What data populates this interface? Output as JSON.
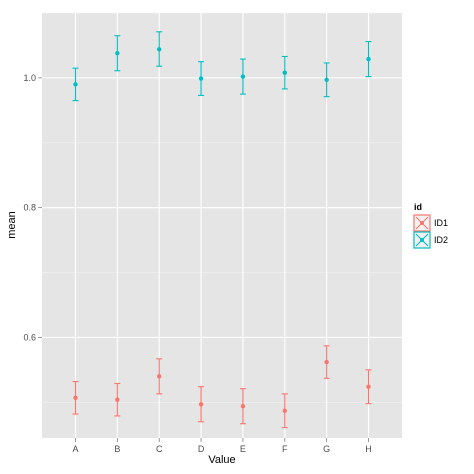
{
  "chart_data": {
    "type": "scatter",
    "title": "",
    "xlabel": "Value",
    "ylabel": "mean",
    "categories": [
      "A",
      "B",
      "C",
      "D",
      "E",
      "F",
      "G",
      "H"
    ],
    "ylim": [
      0.445,
      1.1
    ],
    "yticks": [
      0.6,
      0.8,
      1.0
    ],
    "ytick_labels": [
      "0.6",
      "0.8",
      "1.0"
    ],
    "grid": true,
    "error_bars": true,
    "legend": {
      "title": "id",
      "placement": "right"
    },
    "series": [
      {
        "name": "ID1",
        "color": "#f8766d",
        "values": [
          0.507,
          0.504,
          0.54,
          0.497,
          0.494,
          0.487,
          0.562,
          0.524
        ],
        "lower": [
          0.482,
          0.479,
          0.513,
          0.47,
          0.467,
          0.461,
          0.537,
          0.498
        ],
        "upper": [
          0.532,
          0.529,
          0.567,
          0.524,
          0.521,
          0.513,
          0.587,
          0.55
        ]
      },
      {
        "name": "ID2",
        "color": "#00bfc4",
        "values": [
          0.99,
          1.038,
          1.044,
          0.999,
          1.002,
          1.008,
          0.997,
          1.029
        ],
        "lower": [
          0.965,
          1.011,
          1.018,
          0.973,
          0.975,
          0.983,
          0.971,
          1.002
        ],
        "upper": [
          1.015,
          1.065,
          1.071,
          1.025,
          1.029,
          1.033,
          1.023,
          1.056
        ]
      }
    ]
  }
}
